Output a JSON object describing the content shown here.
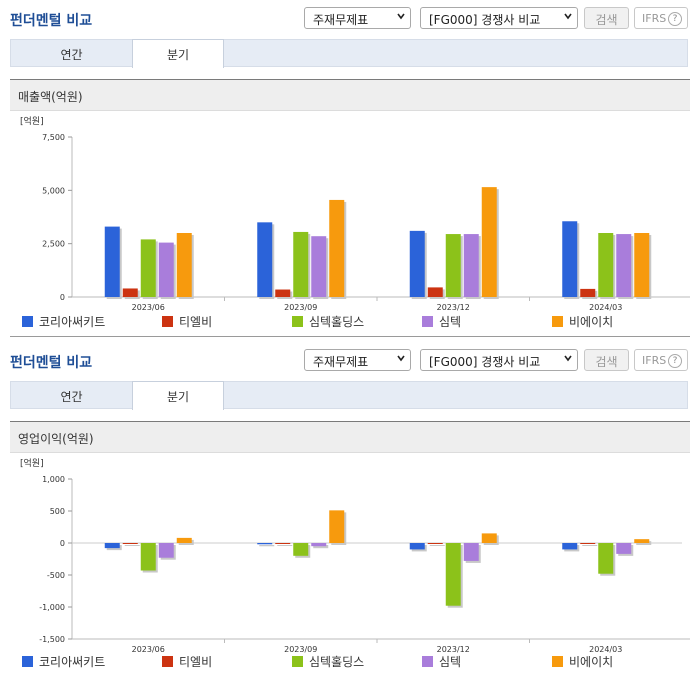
{
  "panels": [
    {
      "title": "펀더멘털 비교",
      "select1": "주재무제표",
      "select2": "[FG000] 경쟁사 비교",
      "search": "검색",
      "ifrs": "IFRS",
      "ifrs_help": "?",
      "tabs": [
        "연간",
        "분기"
      ],
      "active_tab": 1,
      "chart_title": "매출액(억원)"
    },
    {
      "title": "펀더멘털 비교",
      "select1": "주재무제표",
      "select2": "[FG000] 경쟁사 비교",
      "search": "검색",
      "ifrs": "IFRS",
      "ifrs_help": "?",
      "tabs": [
        "연간",
        "분기"
      ],
      "active_tab": 1,
      "chart_title": "영업이익(억원)"
    }
  ],
  "colors": [
    "#2b63d9",
    "#cc3311",
    "#8cc21a",
    "#a97ddb",
    "#f79a0d"
  ],
  "chart_data": [
    {
      "type": "bar",
      "title": "매출액(억원)",
      "unit_label": "[억원]",
      "categories": [
        "2023/06",
        "2023/09",
        "2023/12",
        "2024/03"
      ],
      "ylim": [
        0,
        7500
      ],
      "yticks": [
        0,
        2500,
        5000,
        7500
      ],
      "ytick_labels": [
        "0",
        "2,500",
        "5,000",
        "7,500"
      ],
      "series": [
        {
          "name": "코리아써키트",
          "values": [
            3300,
            3500,
            3100,
            3550
          ]
        },
        {
          "name": "티엘비",
          "values": [
            400,
            350,
            450,
            380
          ]
        },
        {
          "name": "심텍홀딩스",
          "values": [
            2700,
            3050,
            2950,
            3000
          ]
        },
        {
          "name": "심텍",
          "values": [
            2550,
            2850,
            2950,
            2950
          ]
        },
        {
          "name": "비에이치",
          "values": [
            3000,
            4550,
            5150,
            3000
          ]
        }
      ],
      "grid": false,
      "legend": "bottom"
    },
    {
      "type": "bar",
      "title": "영업이익(억원)",
      "unit_label": "[억원]",
      "categories": [
        "2023/06",
        "2023/09",
        "2023/12",
        "2024/03"
      ],
      "ylim": [
        -1500,
        1000
      ],
      "yticks": [
        -1500,
        -1000,
        -500,
        0,
        500,
        1000
      ],
      "ytick_labels": [
        "-1,500",
        "-1,000",
        "-500",
        "0",
        "500",
        "1,000"
      ],
      "series": [
        {
          "name": "코리아써키트",
          "values": [
            -80,
            -20,
            -100,
            -100
          ]
        },
        {
          "name": "티엘비",
          "values": [
            -15,
            -15,
            -10,
            0
          ]
        },
        {
          "name": "심텍홀딩스",
          "values": [
            -430,
            -200,
            -980,
            -480
          ]
        },
        {
          "name": "심텍",
          "values": [
            -230,
            -50,
            -280,
            -170
          ]
        },
        {
          "name": "비에이치",
          "values": [
            80,
            510,
            150,
            60
          ]
        }
      ],
      "grid": false,
      "legend": "bottom"
    }
  ]
}
